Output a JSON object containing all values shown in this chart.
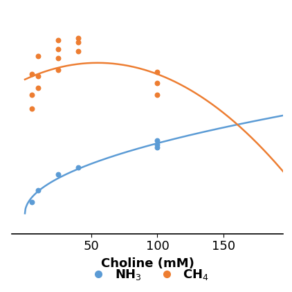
{
  "nh3_scatter_x": [
    5,
    10,
    25,
    40,
    100,
    100,
    100
  ],
  "nh3_scatter_y": [
    0.28,
    0.38,
    0.52,
    0.58,
    0.78,
    0.82,
    0.76
  ],
  "ch4_scatter_x": [
    5,
    5,
    5,
    10,
    10,
    10,
    25,
    25,
    25,
    25,
    40,
    40,
    40,
    100,
    100,
    100
  ],
  "ch4_scatter_y": [
    1.1,
    1.22,
    1.4,
    1.28,
    1.38,
    1.56,
    1.44,
    1.54,
    1.62,
    1.7,
    1.6,
    1.68,
    1.72,
    1.32,
    1.42,
    1.22
  ],
  "nh3_color": "#5b9bd5",
  "ch4_color": "#ed7d31",
  "xlabel": "Choline (mM)",
  "xticks": [
    50,
    100,
    150
  ],
  "legend_nh3": "NH$_3$",
  "legend_ch4": "CH$_4$",
  "xlim_left": -10,
  "xlim_right": 195,
  "ylim_bottom": 0.0,
  "ylim_top": 2.0
}
